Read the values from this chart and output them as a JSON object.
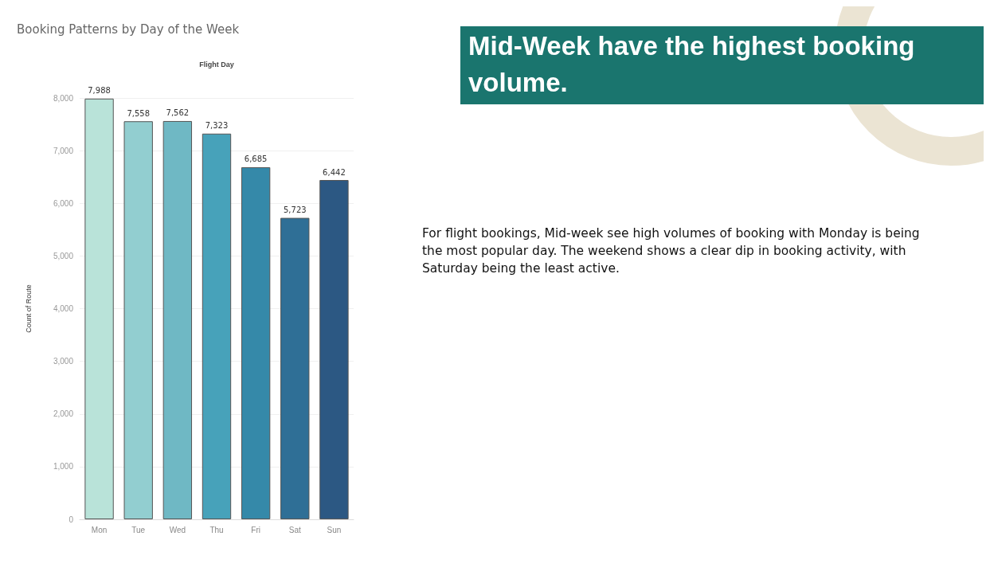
{
  "chart_data": {
    "type": "bar",
    "title": "Booking Patterns by Day of the Week",
    "xlabel": "Flight Day",
    "ylabel": "Count of Route",
    "categories": [
      "Mon",
      "Tue",
      "Wed",
      "Thu",
      "Fri",
      "Sat",
      "Sun"
    ],
    "values": [
      7988,
      7558,
      7562,
      7323,
      6685,
      5723,
      6442
    ],
    "colors": [
      "#b9e3d9",
      "#92ced0",
      "#6fb8c4",
      "#47a2ba",
      "#3589a9",
      "#2f6f96",
      "#2c5883"
    ],
    "value_labels": [
      "7,988",
      "7,558",
      "7,562",
      "7,323",
      "6,685",
      "5,723",
      "6,442"
    ],
    "ylim": [
      0,
      8000
    ],
    "yticks": [
      0,
      {
        "value": 1000,
        "label": "1,000"
      },
      {
        "value": 2000,
        "label": "2,000"
      },
      {
        "value": 3000,
        "label": "3,000"
      },
      {
        "value": 4000,
        "label": "4,000"
      },
      {
        "value": 5000,
        "label": "5,000"
      },
      {
        "value": 6000,
        "label": "6,000"
      },
      {
        "value": 7000,
        "label": "7,000"
      },
      {
        "value": 8000,
        "label": "8,000"
      }
    ],
    "grid": "y",
    "annotations": [
      "Mid-Week have the highest booking volume.",
      "For flight bookings, Mid-week see high volumes of booking with Monday is being the most popular day. The weekend shows a clear dip in booking activity, with Saturday being the least active."
    ]
  }
}
